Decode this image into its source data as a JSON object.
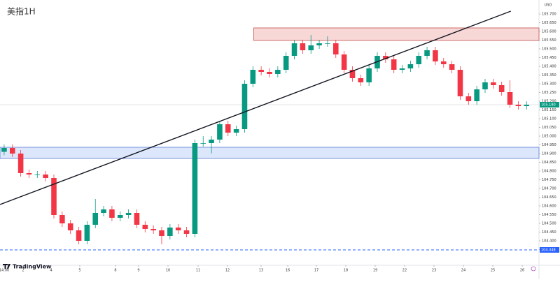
{
  "chart_data": {
    "type": "candlestick",
    "title": "美指1H",
    "brand": "TradingView",
    "currency": "USD",
    "up_color": "#089981",
    "down_color": "#f23645",
    "grid": false,
    "xlim": [
      -0.5,
      64.5
    ],
    "ylim": [
      104.26,
      105.78
    ],
    "xticks": [
      {
        "value": -0.08,
        "label": "14:00"
      },
      {
        "value": 2.29,
        "label": "2"
      },
      {
        "value": 5.66,
        "label": "4"
      },
      {
        "value": 9.12,
        "label": "5"
      },
      {
        "value": 13.43,
        "label": "8"
      },
      {
        "value": 16.21,
        "label": "9"
      },
      {
        "value": 19.76,
        "label": "10"
      },
      {
        "value": 23.39,
        "label": "11"
      },
      {
        "value": 26.94,
        "label": "12"
      },
      {
        "value": 30.99,
        "label": "13"
      },
      {
        "value": 34.2,
        "label": "16"
      },
      {
        "value": 37.66,
        "label": "17"
      },
      {
        "value": 41.2,
        "label": "18"
      },
      {
        "value": 44.75,
        "label": "19"
      },
      {
        "value": 48.29,
        "label": "22"
      },
      {
        "value": 51.84,
        "label": "23"
      },
      {
        "value": 55.38,
        "label": "24"
      },
      {
        "value": 58.93,
        "label": "25"
      },
      {
        "value": 62.48,
        "label": "26"
      }
    ],
    "yticks": [
      {
        "value": 105.7,
        "label": "105.700"
      },
      {
        "value": 105.65,
        "label": "105.650"
      },
      {
        "value": 105.6,
        "label": "105.600"
      },
      {
        "value": 105.55,
        "label": "105.550"
      },
      {
        "value": 105.5,
        "label": "105.500"
      },
      {
        "value": 105.45,
        "label": "105.450"
      },
      {
        "value": 105.4,
        "label": "105.400"
      },
      {
        "value": 105.35,
        "label": "105.350"
      },
      {
        "value": 105.3,
        "label": "105.300"
      },
      {
        "value": 105.25,
        "label": "105.250"
      },
      {
        "value": 105.2,
        "label": "105.200"
      },
      {
        "value": 105.15,
        "label": "105.150"
      },
      {
        "value": 105.1,
        "label": "105.100"
      },
      {
        "value": 105.05,
        "label": "105.050"
      },
      {
        "value": 105.0,
        "label": "105.000"
      },
      {
        "value": 104.95,
        "label": "104.950"
      },
      {
        "value": 104.9,
        "label": "104.900"
      },
      {
        "value": 104.85,
        "label": "104.850"
      },
      {
        "value": 104.8,
        "label": "104.800"
      },
      {
        "value": 104.75,
        "label": "104.750"
      },
      {
        "value": 104.7,
        "label": "104.700"
      },
      {
        "value": 104.65,
        "label": "104.650"
      },
      {
        "value": 104.6,
        "label": "104.600"
      },
      {
        "value": 104.55,
        "label": "104.550"
      },
      {
        "value": 104.5,
        "label": "104.500"
      },
      {
        "value": 104.45,
        "label": "104.450"
      },
      {
        "value": 104.4,
        "label": "104.400"
      },
      {
        "value": 104.35,
        "label": "104.350"
      }
    ],
    "ohlc": [
      [
        104.91,
        104.952,
        104.89,
        104.932
      ],
      [
        104.932,
        104.952,
        104.88,
        104.9
      ],
      [
        104.9,
        104.92,
        104.768,
        104.788
      ],
      [
        104.788,
        104.808,
        104.76,
        104.78
      ],
      [
        104.78,
        104.8,
        104.76,
        104.78
      ],
      [
        104.78,
        104.8,
        104.74,
        104.76
      ],
      [
        104.76,
        104.78,
        104.528,
        104.548
      ],
      [
        104.548,
        104.568,
        104.48,
        104.5
      ],
      [
        104.5,
        104.52,
        104.44,
        104.46
      ],
      [
        104.46,
        104.48,
        104.38,
        104.4
      ],
      [
        104.4,
        104.512,
        104.38,
        104.492
      ],
      [
        104.492,
        104.64,
        104.472,
        104.56
      ],
      [
        104.56,
        104.6,
        104.54,
        104.58
      ],
      [
        104.58,
        104.6,
        104.512,
        104.532
      ],
      [
        104.532,
        104.568,
        104.512,
        104.548
      ],
      [
        104.548,
        104.58,
        104.528,
        104.56
      ],
      [
        104.56,
        104.58,
        104.472,
        104.492
      ],
      [
        104.492,
        104.512,
        104.448,
        104.468
      ],
      [
        104.468,
        104.488,
        104.44,
        104.46
      ],
      [
        104.46,
        104.48,
        104.38,
        104.428
      ],
      [
        104.428,
        104.496,
        104.408,
        104.476
      ],
      [
        104.476,
        104.496,
        104.44,
        104.46
      ],
      [
        104.46,
        104.48,
        104.42,
        104.44
      ],
      [
        104.44,
        104.98,
        104.42,
        104.96
      ],
      [
        104.96,
        105.0,
        104.94,
        104.96
      ],
      [
        104.96,
        105.0,
        104.9,
        104.98
      ],
      [
        104.98,
        105.088,
        104.96,
        105.068
      ],
      [
        105.068,
        105.088,
        105.0,
        105.02
      ],
      [
        105.02,
        105.06,
        105.0,
        105.04
      ],
      [
        105.04,
        105.32,
        105.02,
        105.3
      ],
      [
        105.3,
        105.4,
        105.28,
        105.38
      ],
      [
        105.38,
        105.4,
        105.348,
        105.368
      ],
      [
        105.368,
        105.388,
        105.336,
        105.356
      ],
      [
        105.356,
        105.4,
        105.336,
        105.38
      ],
      [
        105.38,
        105.48,
        105.36,
        105.46
      ],
      [
        105.46,
        105.552,
        105.44,
        105.532
      ],
      [
        105.532,
        105.552,
        105.472,
        105.492
      ],
      [
        105.492,
        105.58,
        105.472,
        105.52
      ],
      [
        105.52,
        105.552,
        105.5,
        105.532
      ],
      [
        105.532,
        105.572,
        105.512,
        105.532
      ],
      [
        105.532,
        105.552,
        105.448,
        105.468
      ],
      [
        105.468,
        105.488,
        105.36,
        105.38
      ],
      [
        105.38,
        105.4,
        105.312,
        105.332
      ],
      [
        105.332,
        105.352,
        105.288,
        105.308
      ],
      [
        105.308,
        105.408,
        105.288,
        105.388
      ],
      [
        105.388,
        105.48,
        105.368,
        105.46
      ],
      [
        105.46,
        105.48,
        105.42,
        105.44
      ],
      [
        105.44,
        105.46,
        105.36,
        105.38
      ],
      [
        105.38,
        105.408,
        105.36,
        105.388
      ],
      [
        105.388,
        105.432,
        105.368,
        105.412
      ],
      [
        105.412,
        105.48,
        105.392,
        105.46
      ],
      [
        105.46,
        105.512,
        105.44,
        105.492
      ],
      [
        105.492,
        105.512,
        105.408,
        105.428
      ],
      [
        105.428,
        105.448,
        105.392,
        105.412
      ],
      [
        105.412,
        105.432,
        105.36,
        105.38
      ],
      [
        105.38,
        105.4,
        105.208,
        105.228
      ],
      [
        105.228,
        105.248,
        105.18,
        105.2
      ],
      [
        105.2,
        105.288,
        105.18,
        105.268
      ],
      [
        105.268,
        105.328,
        105.248,
        105.308
      ],
      [
        105.308,
        105.328,
        105.272,
        105.292
      ],
      [
        105.292,
        105.312,
        105.232,
        105.252
      ],
      [
        105.252,
        105.32,
        105.16,
        105.18
      ],
      [
        105.18,
        105.2,
        105.152,
        105.172
      ],
      [
        105.172,
        105.2,
        105.152,
        105.18
      ]
    ],
    "zones": [
      {
        "color": "#f8d7d7",
        "stroke": "#c0504d",
        "x": [
          30.1,
          64.5
        ],
        "y": [
          105.62,
          105.548
        ]
      },
      {
        "color": "#dde7fb",
        "stroke": "#5a7bd6",
        "x": [
          -0.5,
          64.5
        ],
        "y": [
          104.936,
          104.872
        ]
      }
    ],
    "trendline": {
      "x": [
        -0.5,
        61.1
      ],
      "y": [
        104.608,
        105.716
      ]
    },
    "support": {
      "value": 104.348,
      "label": "104.348",
      "color": "#2962ff"
    },
    "last_price": {
      "value": 105.18,
      "label": "105.180"
    }
  }
}
